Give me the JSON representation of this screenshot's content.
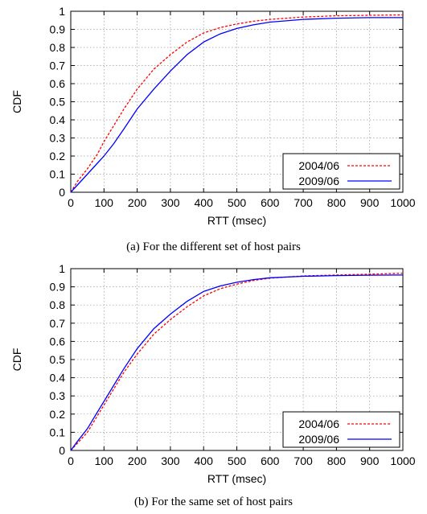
{
  "chart_data": [
    {
      "type": "line",
      "caption": "(a) For the different set of host pairs",
      "xlabel": "RTT (msec)",
      "ylabel": "CDF",
      "xlim": [
        0,
        1000
      ],
      "ylim": [
        0,
        1
      ],
      "xticks": [
        "0",
        "100",
        "200",
        "300",
        "400",
        "500",
        "600",
        "700",
        "800",
        "900",
        "1000"
      ],
      "yticks": [
        "0",
        "0.1",
        "0.2",
        "0.3",
        "0.4",
        "0.5",
        "0.6",
        "0.7",
        "0.8",
        "0.9",
        "1"
      ],
      "grid": true,
      "legend_position": "bottom-right",
      "series": [
        {
          "name": "2004/06",
          "color": "#ff0000",
          "dash": "dashed",
          "x": [
            0,
            20,
            50,
            80,
            100,
            130,
            160,
            200,
            250,
            300,
            350,
            400,
            450,
            500,
            550,
            600,
            700,
            800,
            900,
            1000
          ],
          "y": [
            0,
            0.06,
            0.13,
            0.21,
            0.28,
            0.37,
            0.46,
            0.57,
            0.68,
            0.76,
            0.83,
            0.88,
            0.91,
            0.93,
            0.945,
            0.955,
            0.968,
            0.975,
            0.978,
            0.98
          ]
        },
        {
          "name": "2009/06",
          "color": "#0000ff",
          "dash": "solid",
          "x": [
            0,
            20,
            50,
            80,
            100,
            130,
            160,
            200,
            250,
            300,
            350,
            400,
            450,
            500,
            550,
            600,
            700,
            800,
            900,
            1000
          ],
          "y": [
            0,
            0.04,
            0.1,
            0.16,
            0.2,
            0.27,
            0.35,
            0.46,
            0.57,
            0.67,
            0.76,
            0.83,
            0.875,
            0.905,
            0.925,
            0.94,
            0.955,
            0.962,
            0.965,
            0.965
          ]
        }
      ]
    },
    {
      "type": "line",
      "caption": "(b) For the same set of host pairs",
      "xlabel": "RTT (msec)",
      "ylabel": "CDF",
      "xlim": [
        0,
        1000
      ],
      "ylim": [
        0,
        1
      ],
      "xticks": [
        "0",
        "100",
        "200",
        "300",
        "400",
        "500",
        "600",
        "700",
        "800",
        "900",
        "1000"
      ],
      "yticks": [
        "0",
        "0.1",
        "0.2",
        "0.3",
        "0.4",
        "0.5",
        "0.6",
        "0.7",
        "0.8",
        "0.9",
        "1"
      ],
      "grid": true,
      "legend_position": "bottom-right",
      "series": [
        {
          "name": "2004/06",
          "color": "#ff0000",
          "dash": "dashed",
          "x": [
            0,
            20,
            50,
            80,
            100,
            130,
            160,
            200,
            250,
            300,
            350,
            400,
            450,
            500,
            550,
            600,
            700,
            800,
            900,
            1000
          ],
          "y": [
            0,
            0.04,
            0.1,
            0.19,
            0.25,
            0.34,
            0.43,
            0.53,
            0.64,
            0.72,
            0.79,
            0.85,
            0.89,
            0.915,
            0.935,
            0.948,
            0.96,
            0.965,
            0.97,
            0.975
          ]
        },
        {
          "name": "2009/06",
          "color": "#0000ff",
          "dash": "solid",
          "x": [
            0,
            20,
            50,
            80,
            100,
            130,
            160,
            200,
            250,
            300,
            350,
            400,
            450,
            500,
            550,
            600,
            700,
            800,
            900,
            1000
          ],
          "y": [
            0,
            0.05,
            0.12,
            0.21,
            0.27,
            0.36,
            0.45,
            0.56,
            0.67,
            0.75,
            0.82,
            0.875,
            0.905,
            0.925,
            0.94,
            0.95,
            0.958,
            0.962,
            0.964,
            0.965
          ]
        }
      ]
    }
  ]
}
